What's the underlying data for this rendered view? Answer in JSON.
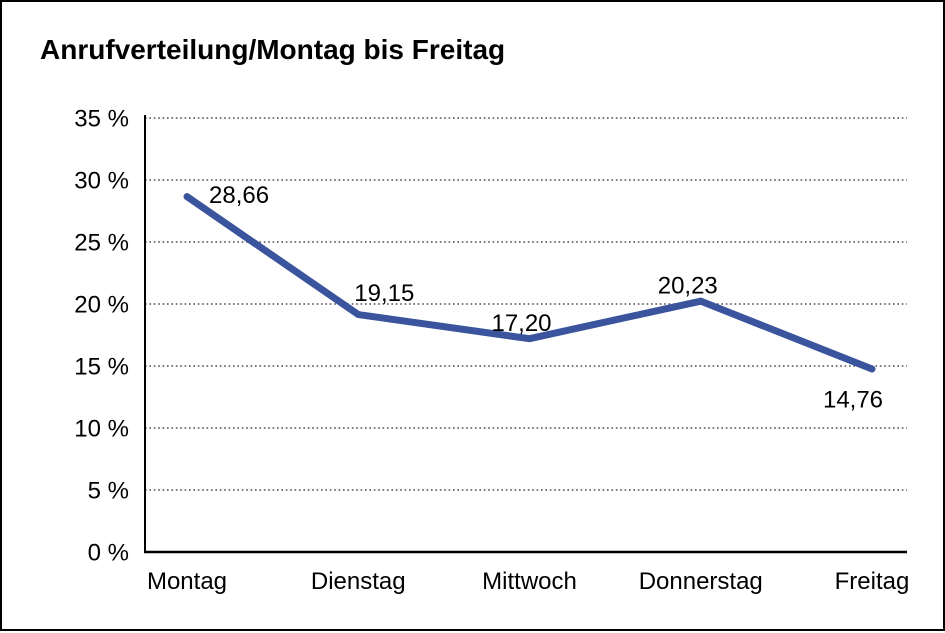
{
  "page": {
    "background": "#FFFFFF",
    "frame_color": "#000000"
  },
  "chart_data": {
    "type": "line",
    "title": "Anrufverteilung/Montag bis Freitag",
    "categories": [
      "Montag",
      "Dienstag",
      "Mittwoch",
      "Donnerstag",
      "Freitag"
    ],
    "series": [
      {
        "values": [
          28.66,
          19.15,
          17.2,
          20.23,
          14.76
        ],
        "point_labels": [
          "28,66",
          "19,15",
          "17,20",
          "20,23",
          "14,76"
        ],
        "color": "#3A549D"
      }
    ],
    "ylim": [
      0,
      35
    ],
    "yticks": [
      0,
      5,
      10,
      15,
      20,
      25,
      30,
      35
    ],
    "ytick_labels": [
      "0 %",
      "5 %",
      "10 %",
      "15 %",
      "20 %",
      "25 %",
      "30 %",
      "35 %"
    ],
    "xlabel": "",
    "ylabel": "",
    "legend": "none",
    "grid": "horizontal-dotted",
    "grid_color": "#4D4D4D",
    "axis_color": "#000000",
    "text_color": "#000000"
  }
}
